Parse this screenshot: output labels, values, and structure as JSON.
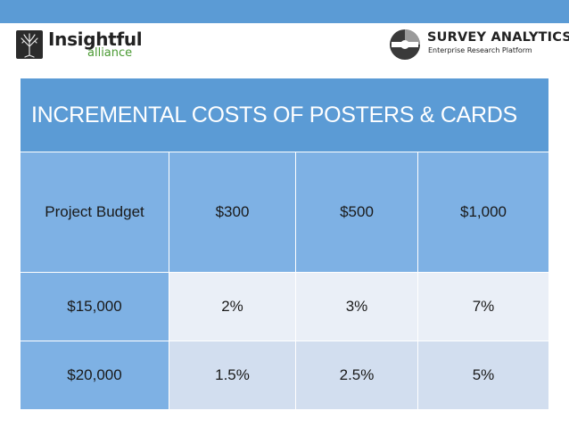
{
  "logos": {
    "left": {
      "name": "Insightful",
      "sub": "alliance"
    },
    "right": {
      "name": "SURVEY ANALYTICS",
      "tagline": "Enterprise Research Platform"
    }
  },
  "table": {
    "title": "INCREMENTAL COSTS OF POSTERS & CARDS",
    "header": [
      "Project Budget",
      "$300",
      "$500",
      "$1,000"
    ],
    "rows": [
      [
        "$15,000",
        "2%",
        "3%",
        "7%"
      ],
      [
        "$20,000",
        "1.5%",
        "2.5%",
        "5%"
      ]
    ]
  },
  "colors": {
    "top_bar": "#5b9bd5",
    "title_fill": "#5b9bd5",
    "header_fill": "#7eb1e4",
    "row_light": "#eaeff7",
    "row_mid": "#d2deef",
    "brand_green": "#4a9a33"
  }
}
